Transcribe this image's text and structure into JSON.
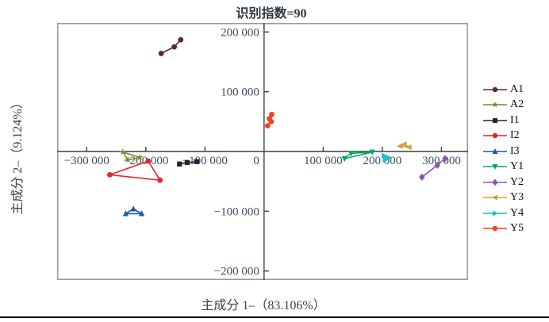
{
  "title": "识别指数=90",
  "x_axis_label": "主成分 1–（83.106%）",
  "y_axis_label": "主成分 2–（9.124%）",
  "colors": {
    "plot_border": "#9a9a9a",
    "axis": "#3f3f3f",
    "tick_text": "#3e4e61",
    "label_text": "#39434d",
    "bottom_rule": "#000000"
  },
  "chart_data": {
    "type": "scatter",
    "title": "识别指数=90",
    "xlabel": "主成分 1–（83.106%）",
    "ylabel": "主成分 2–（9.124%）",
    "xlim": [
      -350000,
      345000
    ],
    "ylim": [
      -215000,
      215000
    ],
    "grid": false,
    "legend_position": "right",
    "x_ticks": [
      {
        "v": -300000,
        "label": "−300 000"
      },
      {
        "v": -200000,
        "label": "−200 000"
      },
      {
        "v": -100000,
        "label": "−100 000"
      },
      {
        "v": 0,
        "label": "0"
      },
      {
        "v": 100000,
        "label": "100 000"
      },
      {
        "v": 200000,
        "label": "200 000"
      },
      {
        "v": 300000,
        "label": "300 000"
      }
    ],
    "y_ticks": [
      {
        "v": 200000,
        "label": "200 000"
      },
      {
        "v": 100000,
        "label": "100 000"
      },
      {
        "v": -100000,
        "label": "−100 000"
      },
      {
        "v": -200000,
        "label": "−200 000"
      }
    ],
    "series": [
      {
        "name": "A1",
        "color": "#5f262e",
        "marker": "circle",
        "closed": false,
        "points": [
          [
            -174000,
            164000
          ],
          [
            -152000,
            175000
          ],
          [
            -141000,
            187000
          ]
        ]
      },
      {
        "name": "A2",
        "color": "#7f8733",
        "marker": "star",
        "closed": true,
        "points": [
          [
            -239000,
            -1000
          ],
          [
            -210000,
            -10000
          ],
          [
            -230000,
            -14000
          ]
        ]
      },
      {
        "name": "I1",
        "color": "#262626",
        "marker": "square",
        "closed": false,
        "points": [
          [
            -143000,
            -21000
          ],
          [
            -130000,
            -18500
          ],
          [
            -114000,
            -17000
          ]
        ]
      },
      {
        "name": "I2",
        "color": "#e82529",
        "marker": "circle",
        "closed": true,
        "points": [
          [
            -196000,
            -16000
          ],
          [
            -261000,
            -39000
          ],
          [
            -176000,
            -48000
          ]
        ]
      },
      {
        "name": "I3",
        "color": "#2056ae",
        "marker": "triangle-up",
        "closed": true,
        "points": [
          [
            -234000,
            -104000
          ],
          [
            -221000,
            -96000
          ],
          [
            -207000,
            -104000
          ]
        ]
      },
      {
        "name": "Y1",
        "color": "#00a95c",
        "marker": "triangle-down",
        "closed": true,
        "points": [
          [
            136000,
            -12000
          ],
          [
            147000,
            -3000
          ],
          [
            183000,
            -1000
          ]
        ]
      },
      {
        "name": "Y2",
        "color": "#8a55a7",
        "marker": "diamond",
        "closed": false,
        "points": [
          [
            267000,
            -43000
          ],
          [
            293000,
            -23000
          ],
          [
            306000,
            -12000
          ]
        ]
      },
      {
        "name": "Y3",
        "color": "#d49f3d",
        "marker": "triangle-left",
        "closed": true,
        "points": [
          [
            230000,
            9000
          ],
          [
            237000,
            12000
          ],
          [
            245000,
            7000
          ]
        ]
      },
      {
        "name": "Y4",
        "color": "#19bec4",
        "marker": "triangle-right",
        "closed": true,
        "points": [
          [
            203000,
            -7000
          ],
          [
            211000,
            -10500
          ],
          [
            205000,
            -14000
          ]
        ]
      },
      {
        "name": "Y5",
        "color": "#f44122",
        "marker": "circle",
        "closed": false,
        "points": [
          [
            13000,
            62000
          ],
          [
            9000,
            55000
          ],
          [
            12000,
            50000
          ],
          [
            6000,
            43000
          ]
        ]
      }
    ]
  }
}
